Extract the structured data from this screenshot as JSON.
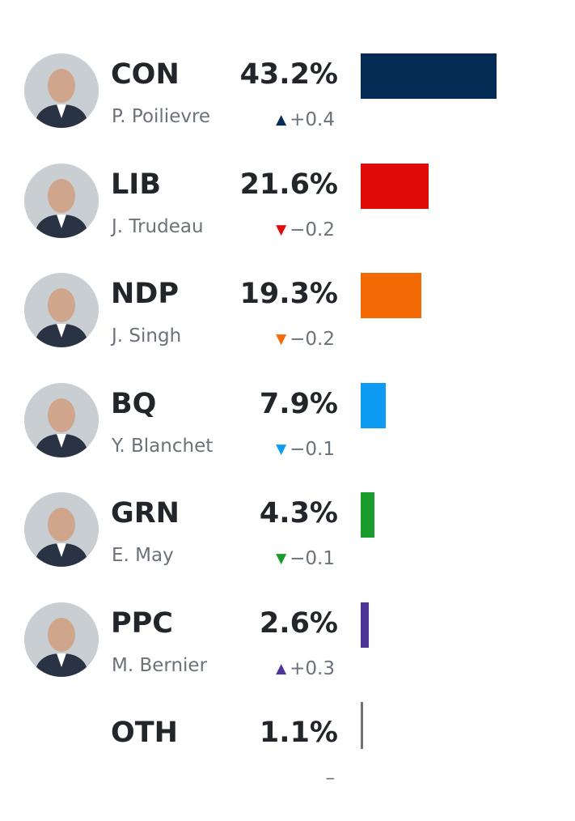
{
  "chart_data": {
    "type": "bar",
    "orientation": "horizontal",
    "categories": [
      "CON",
      "LIB",
      "NDP",
      "BQ",
      "GRN",
      "PPC",
      "OTH"
    ],
    "values": [
      43.2,
      21.6,
      19.3,
      7.9,
      4.3,
      2.6,
      1.1
    ],
    "title": "",
    "xlabel": "",
    "ylabel": "",
    "grid": false,
    "rows": [
      {
        "party": "CON",
        "leader": "P. Poilievre",
        "pct": "43.2%",
        "value": 43.2,
        "change": "+0.4",
        "direction": "up",
        "color": "#042c54",
        "avatar": "person-photo"
      },
      {
        "party": "LIB",
        "leader": "J. Trudeau",
        "pct": "21.6%",
        "value": 21.6,
        "change": "−0.2",
        "direction": "down",
        "color": "#e00c0c",
        "avatar": "person-photo"
      },
      {
        "party": "NDP",
        "leader": "J. Singh",
        "pct": "19.3%",
        "value": 19.3,
        "change": "−0.2",
        "direction": "down",
        "color": "#f36a05",
        "avatar": "person-photo"
      },
      {
        "party": "BQ",
        "leader": "Y. Blanchet",
        "pct": "7.9%",
        "value": 7.9,
        "change": "−0.1",
        "direction": "down",
        "color": "#0c9af2",
        "avatar": "person-photo"
      },
      {
        "party": "GRN",
        "leader": "E. May",
        "pct": "4.3%",
        "value": 4.3,
        "change": "−0.1",
        "direction": "down",
        "color": "#1a9c2c",
        "avatar": "person-photo"
      },
      {
        "party": "PPC",
        "leader": "M. Bernier",
        "pct": "2.6%",
        "value": 2.6,
        "change": "+0.3",
        "direction": "up",
        "color": "#4d3597",
        "avatar": "person-photo"
      },
      {
        "party": "OTH",
        "leader": "",
        "pct": "1.1%",
        "value": 1.1,
        "change": "–",
        "direction": "none",
        "color": "#6f7378",
        "avatar": ""
      }
    ]
  }
}
